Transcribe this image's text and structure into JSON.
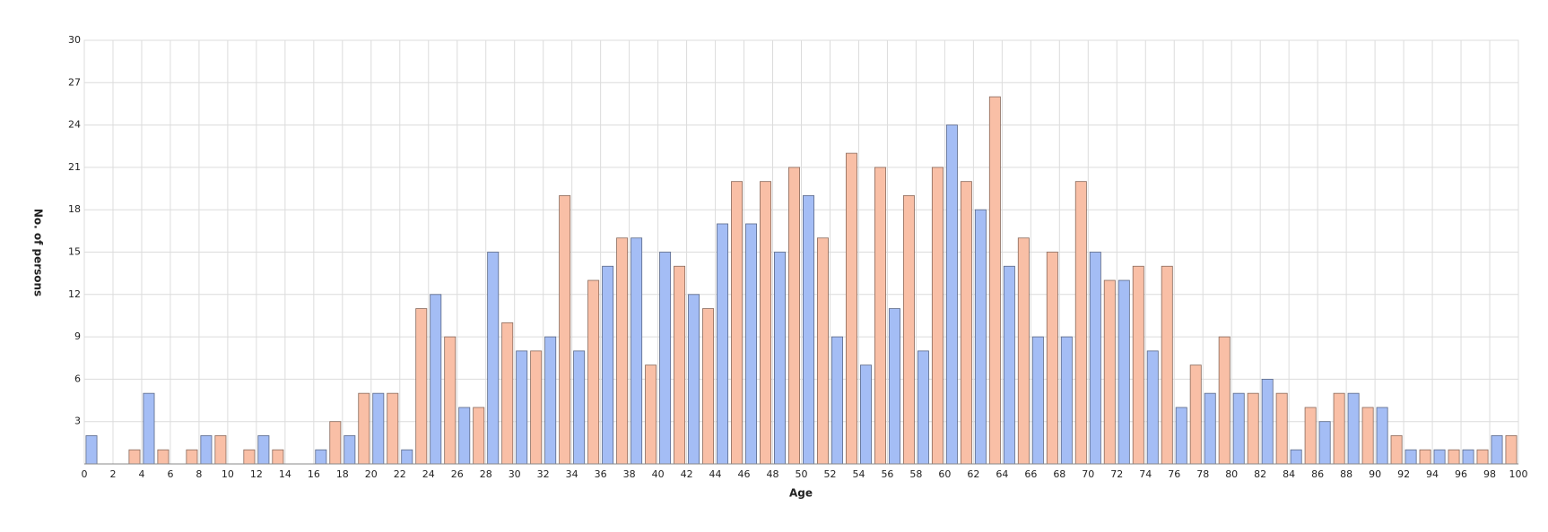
{
  "chart_data": {
    "type": "histogram",
    "x_label": "Age",
    "y_label": "No. of persons",
    "bins": [
      0,
      1,
      2,
      3,
      4,
      5,
      6,
      7,
      8,
      9,
      10,
      11,
      12,
      13,
      14,
      15,
      16,
      17,
      18,
      19,
      20,
      21,
      22,
      23,
      24,
      25,
      26,
      27,
      28,
      29,
      30,
      31,
      32,
      33,
      34,
      35,
      36,
      37,
      38,
      39,
      40,
      41,
      42,
      43,
      44,
      45,
      46,
      47,
      48,
      49,
      50,
      51,
      52,
      53,
      54,
      55,
      56,
      57,
      58,
      59,
      60,
      61,
      62,
      63,
      64,
      65,
      66,
      67,
      68,
      69,
      70,
      71,
      72,
      73,
      74,
      75,
      76,
      77,
      78,
      79,
      80,
      81,
      82,
      83,
      84,
      85,
      86,
      87,
      88,
      89,
      90,
      91,
      92,
      93,
      94,
      95,
      96,
      97,
      98,
      99,
      100
    ],
    "values": [
      2,
      0,
      0,
      1,
      5,
      1,
      0,
      1,
      2,
      2,
      0,
      1,
      2,
      1,
      0,
      0,
      1,
      3,
      2,
      5,
      5,
      5,
      1,
      11,
      12,
      9,
      4,
      4,
      15,
      10,
      8,
      8,
      9,
      19,
      8,
      13,
      14,
      16,
      16,
      7,
      15,
      14,
      12,
      11,
      17,
      20,
      17,
      20,
      15,
      21,
      19,
      16,
      9,
      22,
      7,
      21,
      11,
      19,
      8,
      21,
      24,
      20,
      18,
      26,
      14,
      16,
      9,
      15,
      9,
      20,
      15,
      13,
      13,
      14,
      8,
      14,
      4,
      7,
      5,
      9,
      5,
      5,
      6,
      5,
      1,
      4,
      3,
      5,
      5,
      4,
      4,
      2,
      1,
      1,
      1,
      1,
      1,
      1,
      2,
      2
    ],
    "colors": [
      "#a4bdf5",
      "#f9bfa6"
    ],
    "xlim": [
      0,
      100
    ],
    "xticks": [
      0,
      2,
      4,
      6,
      8,
      10,
      12,
      14,
      16,
      18,
      20,
      22,
      24,
      26,
      28,
      30,
      32,
      34,
      36,
      38,
      40,
      42,
      44,
      46,
      48,
      50,
      52,
      54,
      56,
      58,
      60,
      62,
      64,
      66,
      68,
      70,
      72,
      74,
      76,
      78,
      80,
      82,
      84,
      86,
      88,
      90,
      92,
      94,
      96,
      98,
      100
    ],
    "ylim": [
      0,
      30
    ],
    "yticks": [
      3,
      6,
      9,
      12,
      15,
      18,
      21,
      24,
      27,
      30
    ],
    "grid": true
  }
}
